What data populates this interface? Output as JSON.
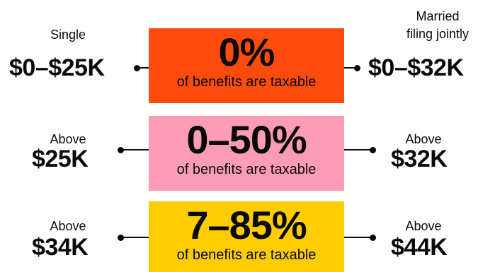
{
  "colors": {
    "row1_box": "#FF4C0D",
    "row2_box": "#FC9CB7",
    "row3_box": "#FFCC00",
    "text": "#0A0A0A",
    "background": "#FFFFFF"
  },
  "headers": {
    "single": "Single",
    "married_line1": "Married",
    "married_line2": "filing jointly"
  },
  "rows": [
    {
      "left_small": "",
      "left_big": "$0–$25K",
      "percent": "0%",
      "caption": "of benefits are taxable",
      "right_small": "",
      "right_big": "$0–$32K"
    },
    {
      "left_small": "Above",
      "left_big": "$25K",
      "percent": "0–50%",
      "caption": "of benefits are taxable",
      "right_small": "Above",
      "right_big": "$32K"
    },
    {
      "left_small": "Above",
      "left_big": "$34K",
      "percent": "7–85%",
      "caption": "of benefits are taxable",
      "right_small": "Above",
      "right_big": "$44K"
    }
  ]
}
